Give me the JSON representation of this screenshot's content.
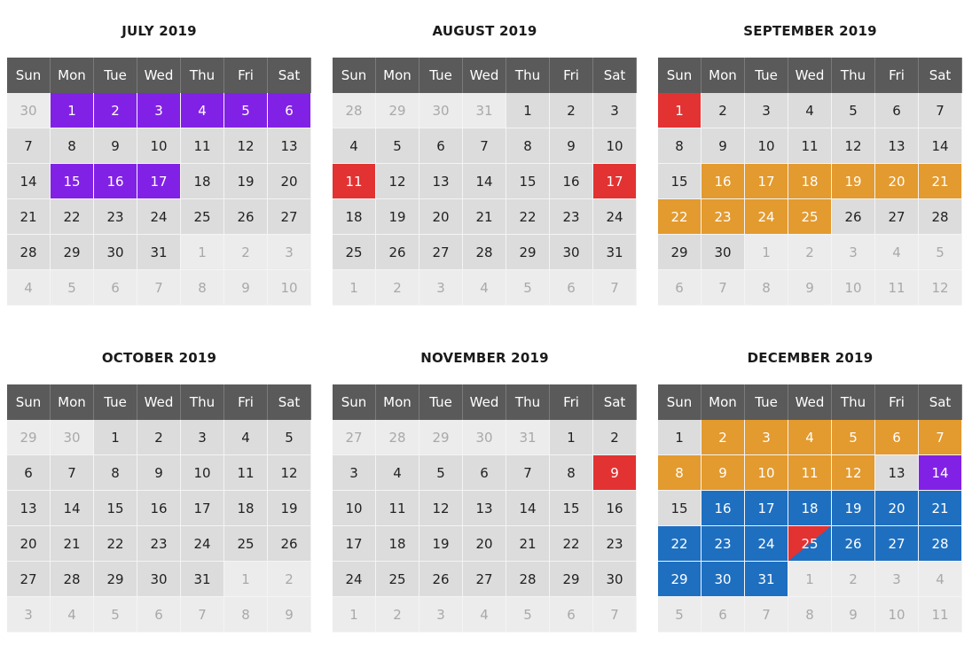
{
  "colors": {
    "header": "#5a5a5a",
    "current_month_day": "#dcdcdc",
    "other_month_day": "#ececec",
    "purple": "#8221e6",
    "red": "#e23232",
    "orange": "#e39a2e",
    "blue": "#1e6fc0"
  },
  "weekdays": [
    "Sun",
    "Mon",
    "Tue",
    "Wed",
    "Thu",
    "Fri",
    "Sat"
  ],
  "months": [
    {
      "title": "JULY 2019",
      "weeks": [
        [
          {
            "d": "30",
            "o": true
          },
          {
            "d": "1",
            "c": "purple"
          },
          {
            "d": "2",
            "c": "purple"
          },
          {
            "d": "3",
            "c": "purple"
          },
          {
            "d": "4",
            "c": "purple"
          },
          {
            "d": "5",
            "c": "purple"
          },
          {
            "d": "6",
            "c": "purple"
          }
        ],
        [
          {
            "d": "7"
          },
          {
            "d": "8"
          },
          {
            "d": "9"
          },
          {
            "d": "10"
          },
          {
            "d": "11"
          },
          {
            "d": "12"
          },
          {
            "d": "13"
          }
        ],
        [
          {
            "d": "14"
          },
          {
            "d": "15",
            "c": "purple"
          },
          {
            "d": "16",
            "c": "purple"
          },
          {
            "d": "17",
            "c": "purple"
          },
          {
            "d": "18"
          },
          {
            "d": "19"
          },
          {
            "d": "20"
          }
        ],
        [
          {
            "d": "21"
          },
          {
            "d": "22"
          },
          {
            "d": "23"
          },
          {
            "d": "24"
          },
          {
            "d": "25"
          },
          {
            "d": "26"
          },
          {
            "d": "27"
          }
        ],
        [
          {
            "d": "28"
          },
          {
            "d": "29"
          },
          {
            "d": "30"
          },
          {
            "d": "31"
          },
          {
            "d": "1",
            "o": true
          },
          {
            "d": "2",
            "o": true
          },
          {
            "d": "3",
            "o": true
          }
        ],
        [
          {
            "d": "4",
            "o": true
          },
          {
            "d": "5",
            "o": true
          },
          {
            "d": "6",
            "o": true
          },
          {
            "d": "7",
            "o": true
          },
          {
            "d": "8",
            "o": true
          },
          {
            "d": "9",
            "o": true
          },
          {
            "d": "10",
            "o": true
          }
        ]
      ]
    },
    {
      "title": "AUGUST 2019",
      "weeks": [
        [
          {
            "d": "28",
            "o": true
          },
          {
            "d": "29",
            "o": true
          },
          {
            "d": "30",
            "o": true
          },
          {
            "d": "31",
            "o": true
          },
          {
            "d": "1"
          },
          {
            "d": "2"
          },
          {
            "d": "3"
          }
        ],
        [
          {
            "d": "4"
          },
          {
            "d": "5"
          },
          {
            "d": "6"
          },
          {
            "d": "7"
          },
          {
            "d": "8"
          },
          {
            "d": "9"
          },
          {
            "d": "10"
          }
        ],
        [
          {
            "d": "11",
            "c": "red"
          },
          {
            "d": "12"
          },
          {
            "d": "13"
          },
          {
            "d": "14"
          },
          {
            "d": "15"
          },
          {
            "d": "16"
          },
          {
            "d": "17",
            "c": "red"
          }
        ],
        [
          {
            "d": "18"
          },
          {
            "d": "19"
          },
          {
            "d": "20"
          },
          {
            "d": "21"
          },
          {
            "d": "22"
          },
          {
            "d": "23"
          },
          {
            "d": "24"
          }
        ],
        [
          {
            "d": "25"
          },
          {
            "d": "26"
          },
          {
            "d": "27"
          },
          {
            "d": "28"
          },
          {
            "d": "29"
          },
          {
            "d": "30"
          },
          {
            "d": "31"
          }
        ],
        [
          {
            "d": "1",
            "o": true
          },
          {
            "d": "2",
            "o": true
          },
          {
            "d": "3",
            "o": true
          },
          {
            "d": "4",
            "o": true
          },
          {
            "d": "5",
            "o": true
          },
          {
            "d": "6",
            "o": true
          },
          {
            "d": "7",
            "o": true
          }
        ]
      ]
    },
    {
      "title": "SEPTEMBER 2019",
      "weeks": [
        [
          {
            "d": "1",
            "c": "red"
          },
          {
            "d": "2"
          },
          {
            "d": "3"
          },
          {
            "d": "4"
          },
          {
            "d": "5"
          },
          {
            "d": "6"
          },
          {
            "d": "7"
          }
        ],
        [
          {
            "d": "8"
          },
          {
            "d": "9"
          },
          {
            "d": "10"
          },
          {
            "d": "11"
          },
          {
            "d": "12"
          },
          {
            "d": "13"
          },
          {
            "d": "14"
          }
        ],
        [
          {
            "d": "15"
          },
          {
            "d": "16",
            "c": "orange"
          },
          {
            "d": "17",
            "c": "orange"
          },
          {
            "d": "18",
            "c": "orange"
          },
          {
            "d": "19",
            "c": "orange"
          },
          {
            "d": "20",
            "c": "orange"
          },
          {
            "d": "21",
            "c": "orange"
          }
        ],
        [
          {
            "d": "22",
            "c": "orange"
          },
          {
            "d": "23",
            "c": "orange"
          },
          {
            "d": "24",
            "c": "orange"
          },
          {
            "d": "25",
            "c": "orange"
          },
          {
            "d": "26"
          },
          {
            "d": "27"
          },
          {
            "d": "28"
          }
        ],
        [
          {
            "d": "29"
          },
          {
            "d": "30"
          },
          {
            "d": "1",
            "o": true
          },
          {
            "d": "2",
            "o": true
          },
          {
            "d": "3",
            "o": true
          },
          {
            "d": "4",
            "o": true
          },
          {
            "d": "5",
            "o": true
          }
        ],
        [
          {
            "d": "6",
            "o": true
          },
          {
            "d": "7",
            "o": true
          },
          {
            "d": "8",
            "o": true
          },
          {
            "d": "9",
            "o": true
          },
          {
            "d": "10",
            "o": true
          },
          {
            "d": "11",
            "o": true
          },
          {
            "d": "12",
            "o": true
          }
        ]
      ]
    },
    {
      "title": "OCTOBER 2019",
      "weeks": [
        [
          {
            "d": "29",
            "o": true
          },
          {
            "d": "30",
            "o": true
          },
          {
            "d": "1"
          },
          {
            "d": "2"
          },
          {
            "d": "3"
          },
          {
            "d": "4"
          },
          {
            "d": "5"
          }
        ],
        [
          {
            "d": "6"
          },
          {
            "d": "7"
          },
          {
            "d": "8"
          },
          {
            "d": "9"
          },
          {
            "d": "10"
          },
          {
            "d": "11"
          },
          {
            "d": "12"
          }
        ],
        [
          {
            "d": "13"
          },
          {
            "d": "14"
          },
          {
            "d": "15"
          },
          {
            "d": "16"
          },
          {
            "d": "17"
          },
          {
            "d": "18"
          },
          {
            "d": "19"
          }
        ],
        [
          {
            "d": "20"
          },
          {
            "d": "21"
          },
          {
            "d": "22"
          },
          {
            "d": "23"
          },
          {
            "d": "24"
          },
          {
            "d": "25"
          },
          {
            "d": "26"
          }
        ],
        [
          {
            "d": "27"
          },
          {
            "d": "28"
          },
          {
            "d": "29"
          },
          {
            "d": "30"
          },
          {
            "d": "31"
          },
          {
            "d": "1",
            "o": true
          },
          {
            "d": "2",
            "o": true
          }
        ],
        [
          {
            "d": "3",
            "o": true
          },
          {
            "d": "4",
            "o": true
          },
          {
            "d": "5",
            "o": true
          },
          {
            "d": "6",
            "o": true
          },
          {
            "d": "7",
            "o": true
          },
          {
            "d": "8",
            "o": true
          },
          {
            "d": "9",
            "o": true
          }
        ]
      ]
    },
    {
      "title": "NOVEMBER 2019",
      "weeks": [
        [
          {
            "d": "27",
            "o": true
          },
          {
            "d": "28",
            "o": true
          },
          {
            "d": "29",
            "o": true
          },
          {
            "d": "30",
            "o": true
          },
          {
            "d": "31",
            "o": true
          },
          {
            "d": "1"
          },
          {
            "d": "2"
          }
        ],
        [
          {
            "d": "3"
          },
          {
            "d": "4"
          },
          {
            "d": "5"
          },
          {
            "d": "6"
          },
          {
            "d": "7"
          },
          {
            "d": "8"
          },
          {
            "d": "9",
            "c": "red"
          }
        ],
        [
          {
            "d": "10"
          },
          {
            "d": "11"
          },
          {
            "d": "12"
          },
          {
            "d": "13"
          },
          {
            "d": "14"
          },
          {
            "d": "15"
          },
          {
            "d": "16"
          }
        ],
        [
          {
            "d": "17"
          },
          {
            "d": "18"
          },
          {
            "d": "19"
          },
          {
            "d": "20"
          },
          {
            "d": "21"
          },
          {
            "d": "22"
          },
          {
            "d": "23"
          }
        ],
        [
          {
            "d": "24"
          },
          {
            "d": "25"
          },
          {
            "d": "26"
          },
          {
            "d": "27"
          },
          {
            "d": "28"
          },
          {
            "d": "29"
          },
          {
            "d": "30"
          }
        ],
        [
          {
            "d": "1",
            "o": true
          },
          {
            "d": "2",
            "o": true
          },
          {
            "d": "3",
            "o": true
          },
          {
            "d": "4",
            "o": true
          },
          {
            "d": "5",
            "o": true
          },
          {
            "d": "6",
            "o": true
          },
          {
            "d": "7",
            "o": true
          }
        ]
      ]
    },
    {
      "title": "DECEMBER 2019",
      "weeks": [
        [
          {
            "d": "1"
          },
          {
            "d": "2",
            "c": "orange"
          },
          {
            "d": "3",
            "c": "orange"
          },
          {
            "d": "4",
            "c": "orange"
          },
          {
            "d": "5",
            "c": "orange"
          },
          {
            "d": "6",
            "c": "orange"
          },
          {
            "d": "7",
            "c": "orange"
          }
        ],
        [
          {
            "d": "8",
            "c": "orange"
          },
          {
            "d": "9",
            "c": "orange"
          },
          {
            "d": "10",
            "c": "orange"
          },
          {
            "d": "11",
            "c": "orange"
          },
          {
            "d": "12",
            "c": "orange"
          },
          {
            "d": "13"
          },
          {
            "d": "14",
            "c": "purple"
          }
        ],
        [
          {
            "d": "15"
          },
          {
            "d": "16",
            "c": "blue"
          },
          {
            "d": "17",
            "c": "blue"
          },
          {
            "d": "18",
            "c": "blue"
          },
          {
            "d": "19",
            "c": "blue"
          },
          {
            "d": "20",
            "c": "blue"
          },
          {
            "d": "21",
            "c": "blue"
          }
        ],
        [
          {
            "d": "22",
            "c": "blue"
          },
          {
            "d": "23",
            "c": "blue"
          },
          {
            "d": "24",
            "c": "blue"
          },
          {
            "d": "25",
            "c": "split"
          },
          {
            "d": "26",
            "c": "blue"
          },
          {
            "d": "27",
            "c": "blue"
          },
          {
            "d": "28",
            "c": "blue"
          }
        ],
        [
          {
            "d": "29",
            "c": "blue"
          },
          {
            "d": "30",
            "c": "blue"
          },
          {
            "d": "31",
            "c": "blue"
          },
          {
            "d": "1",
            "o": true
          },
          {
            "d": "2",
            "o": true
          },
          {
            "d": "3",
            "o": true
          },
          {
            "d": "4",
            "o": true
          }
        ],
        [
          {
            "d": "5",
            "o": true
          },
          {
            "d": "6",
            "o": true
          },
          {
            "d": "7",
            "o": true
          },
          {
            "d": "8",
            "o": true
          },
          {
            "d": "9",
            "o": true
          },
          {
            "d": "10",
            "o": true
          },
          {
            "d": "11",
            "o": true
          }
        ]
      ]
    }
  ]
}
